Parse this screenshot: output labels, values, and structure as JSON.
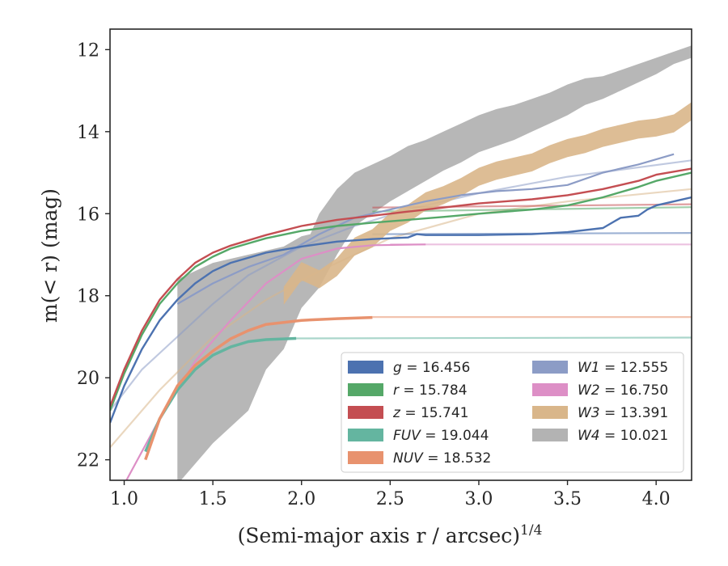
{
  "chart_data": {
    "type": "line",
    "xlabel": "(Semi-major axis r / arcsec)",
    "xlabel_sup": "1/4",
    "ylabel": "m(< r) (mag)",
    "xlim": [
      0.92,
      4.2
    ],
    "ylim": [
      22.5,
      11.5
    ],
    "x_ticks": [
      1.0,
      1.5,
      2.0,
      2.5,
      3.0,
      3.5,
      4.0
    ],
    "x_tick_labels": [
      "1.0",
      "1.5",
      "2.0",
      "2.5",
      "3.0",
      "3.5",
      "4.0"
    ],
    "y_ticks": [
      12,
      14,
      16,
      18,
      20,
      22
    ],
    "y_tick_labels": [
      "12",
      "14",
      "16",
      "18",
      "20",
      "22"
    ],
    "legend_position": "lower-right",
    "series": [
      {
        "name": "g",
        "legend": "g = 16.456",
        "color": "#4c72b0",
        "values": [
          [
            0.92,
            21.1
          ],
          [
            1.0,
            20.2
          ],
          [
            1.1,
            19.3
          ],
          [
            1.2,
            18.6
          ],
          [
            1.3,
            18.1
          ],
          [
            1.4,
            17.7
          ],
          [
            1.5,
            17.4
          ],
          [
            1.6,
            17.2
          ],
          [
            1.8,
            16.95
          ],
          [
            2.0,
            16.8
          ],
          [
            2.2,
            16.68
          ],
          [
            2.4,
            16.62
          ],
          [
            2.6,
            16.58
          ],
          [
            2.65,
            16.5
          ],
          [
            2.7,
            16.52
          ],
          [
            3.0,
            16.52
          ],
          [
            3.3,
            16.5
          ],
          [
            3.5,
            16.45
          ],
          [
            3.7,
            16.35
          ],
          [
            3.8,
            16.1
          ],
          [
            3.9,
            16.05
          ],
          [
            3.95,
            15.9
          ],
          [
            4.0,
            15.8
          ],
          [
            4.1,
            15.7
          ],
          [
            4.2,
            15.6
          ]
        ],
        "model": [
          [
            2.4,
            16.5
          ],
          [
            4.2,
            16.47
          ]
        ]
      },
      {
        "name": "r",
        "legend": "r = 15.784",
        "color": "#55a868",
        "values": [
          [
            0.92,
            20.8
          ],
          [
            1.0,
            19.9
          ],
          [
            1.1,
            18.95
          ],
          [
            1.2,
            18.2
          ],
          [
            1.3,
            17.7
          ],
          [
            1.4,
            17.3
          ],
          [
            1.5,
            17.05
          ],
          [
            1.6,
            16.85
          ],
          [
            1.8,
            16.6
          ],
          [
            2.0,
            16.42
          ],
          [
            2.2,
            16.3
          ],
          [
            2.4,
            16.22
          ],
          [
            2.6,
            16.15
          ],
          [
            2.8,
            16.08
          ],
          [
            3.0,
            16.0
          ],
          [
            3.3,
            15.9
          ],
          [
            3.5,
            15.8
          ],
          [
            3.7,
            15.6
          ],
          [
            3.9,
            15.35
          ],
          [
            4.0,
            15.2
          ],
          [
            4.2,
            15.0
          ]
        ],
        "model": [
          [
            2.4,
            15.95
          ],
          [
            4.2,
            15.84
          ]
        ]
      },
      {
        "name": "z",
        "legend": "z = 15.741",
        "color": "#c44e52",
        "values": [
          [
            0.92,
            20.7
          ],
          [
            1.0,
            19.8
          ],
          [
            1.1,
            18.85
          ],
          [
            1.2,
            18.1
          ],
          [
            1.3,
            17.6
          ],
          [
            1.4,
            17.2
          ],
          [
            1.5,
            16.95
          ],
          [
            1.6,
            16.78
          ],
          [
            1.8,
            16.52
          ],
          [
            2.0,
            16.3
          ],
          [
            2.2,
            16.15
          ],
          [
            2.4,
            16.05
          ],
          [
            2.6,
            15.95
          ],
          [
            2.8,
            15.85
          ],
          [
            3.0,
            15.75
          ],
          [
            3.3,
            15.65
          ],
          [
            3.5,
            15.55
          ],
          [
            3.7,
            15.4
          ],
          [
            3.9,
            15.2
          ],
          [
            4.0,
            15.05
          ],
          [
            4.2,
            14.9
          ]
        ],
        "model": [
          [
            2.4,
            15.85
          ],
          [
            4.2,
            15.77
          ]
        ]
      },
      {
        "name": "FUV",
        "legend": "FUV = 19.044",
        "color": "#64b5a0",
        "values": [
          [
            1.12,
            21.8
          ],
          [
            1.2,
            21.0
          ],
          [
            1.3,
            20.3
          ],
          [
            1.4,
            19.8
          ],
          [
            1.5,
            19.45
          ],
          [
            1.6,
            19.25
          ],
          [
            1.7,
            19.12
          ],
          [
            1.8,
            19.07
          ],
          [
            1.97,
            19.04
          ]
        ],
        "model": [
          [
            1.97,
            19.04
          ],
          [
            4.2,
            19.02
          ]
        ]
      },
      {
        "name": "NUV",
        "legend": "NUV = 18.532",
        "color": "#e8926e",
        "values": [
          [
            1.12,
            22.0
          ],
          [
            1.2,
            21.0
          ],
          [
            1.3,
            20.2
          ],
          [
            1.4,
            19.7
          ],
          [
            1.5,
            19.35
          ],
          [
            1.6,
            19.05
          ],
          [
            1.7,
            18.85
          ],
          [
            1.8,
            18.7
          ],
          [
            2.0,
            18.6
          ],
          [
            2.2,
            18.56
          ],
          [
            2.4,
            18.53
          ]
        ],
        "model": [
          [
            2.4,
            18.52
          ],
          [
            4.2,
            18.52
          ]
        ]
      },
      {
        "name": "W1",
        "legend": "W1 = 12.555",
        "color": "#8c9cc6",
        "values": [
          [
            1.3,
            18.2
          ],
          [
            1.5,
            17.7
          ],
          [
            1.7,
            17.3
          ],
          [
            1.9,
            17.0
          ],
          [
            2.1,
            16.5
          ],
          [
            2.3,
            16.1
          ],
          [
            2.5,
            15.9
          ],
          [
            2.7,
            15.7
          ],
          [
            2.9,
            15.55
          ],
          [
            3.1,
            15.45
          ],
          [
            3.3,
            15.4
          ],
          [
            3.5,
            15.3
          ],
          [
            3.7,
            15.0
          ],
          [
            3.9,
            14.8
          ],
          [
            4.1,
            14.55
          ]
        ],
        "model": [
          [
            0.92,
            20.8
          ],
          [
            1.1,
            19.8
          ],
          [
            1.3,
            19.0
          ],
          [
            1.5,
            18.2
          ],
          [
            1.7,
            17.5
          ],
          [
            2.0,
            16.8
          ],
          [
            2.3,
            16.3
          ],
          [
            2.6,
            15.9
          ],
          [
            3.0,
            15.5
          ],
          [
            3.5,
            15.1
          ],
          [
            4.2,
            14.7
          ]
        ]
      },
      {
        "name": "W2",
        "legend": "W2 = 16.750",
        "color": "#dd8fc6",
        "values": [
          [
            1.0,
            22.6
          ],
          [
            1.2,
            21.0
          ],
          [
            1.4,
            19.6
          ],
          [
            1.6,
            18.6
          ],
          [
            1.8,
            17.7
          ],
          [
            2.0,
            17.1
          ],
          [
            2.2,
            16.85
          ],
          [
            2.4,
            16.77
          ],
          [
            2.7,
            16.75
          ]
        ],
        "model": [
          [
            2.5,
            16.75
          ],
          [
            4.2,
            16.75
          ]
        ]
      },
      {
        "name": "W3",
        "legend": "W3 = 13.391",
        "color": "#d9b68a",
        "band_center": [
          [
            1.9,
            18.0
          ],
          [
            2.0,
            17.4
          ],
          [
            2.1,
            17.6
          ],
          [
            2.2,
            17.3
          ],
          [
            2.3,
            16.8
          ],
          [
            2.4,
            16.6
          ],
          [
            2.5,
            16.2
          ],
          [
            2.6,
            16.0
          ],
          [
            2.7,
            15.7
          ],
          [
            2.8,
            15.55
          ],
          [
            2.9,
            15.35
          ],
          [
            3.0,
            15.1
          ],
          [
            3.1,
            14.95
          ],
          [
            3.2,
            14.85
          ],
          [
            3.3,
            14.75
          ],
          [
            3.4,
            14.55
          ],
          [
            3.5,
            14.4
          ],
          [
            3.6,
            14.3
          ],
          [
            3.7,
            14.15
          ],
          [
            3.8,
            14.05
          ],
          [
            3.9,
            13.95
          ],
          [
            4.0,
            13.9
          ],
          [
            4.1,
            13.8
          ],
          [
            4.2,
            13.5
          ]
        ],
        "band_halfwidth": 0.22,
        "model": [
          [
            0.92,
            21.7
          ],
          [
            1.2,
            20.3
          ],
          [
            1.5,
            19.0
          ],
          [
            1.8,
            18.1
          ],
          [
            2.1,
            17.4
          ],
          [
            2.5,
            16.6
          ],
          [
            3.0,
            16.0
          ],
          [
            3.5,
            15.7
          ],
          [
            4.2,
            15.4
          ]
        ]
      },
      {
        "name": "W4",
        "legend": "W4 = 10.021",
        "color": "#b3b3b3",
        "band_upper": [
          [
            1.3,
            17.6
          ],
          [
            1.5,
            17.2
          ],
          [
            1.7,
            17.0
          ],
          [
            1.9,
            16.8
          ],
          [
            2.0,
            16.55
          ],
          [
            2.05,
            16.5
          ],
          [
            2.1,
            16.0
          ],
          [
            2.2,
            15.4
          ],
          [
            2.3,
            15.0
          ],
          [
            2.4,
            14.8
          ],
          [
            2.5,
            14.6
          ],
          [
            2.6,
            14.35
          ],
          [
            2.7,
            14.2
          ],
          [
            2.8,
            14.0
          ],
          [
            2.9,
            13.8
          ],
          [
            3.0,
            13.6
          ],
          [
            3.1,
            13.45
          ],
          [
            3.2,
            13.35
          ],
          [
            3.3,
            13.2
          ],
          [
            3.4,
            13.05
          ],
          [
            3.5,
            12.85
          ],
          [
            3.6,
            12.7
          ],
          [
            3.7,
            12.65
          ],
          [
            3.8,
            12.5
          ],
          [
            3.9,
            12.35
          ],
          [
            4.0,
            12.2
          ],
          [
            4.1,
            12.05
          ],
          [
            4.2,
            11.9
          ]
        ],
        "band_lower": [
          [
            1.3,
            22.6
          ],
          [
            1.5,
            21.6
          ],
          [
            1.7,
            20.8
          ],
          [
            1.8,
            19.8
          ],
          [
            1.9,
            19.3
          ],
          [
            2.0,
            18.3
          ],
          [
            2.1,
            17.8
          ],
          [
            2.2,
            17.0
          ],
          [
            2.3,
            16.3
          ],
          [
            2.4,
            16.0
          ],
          [
            2.5,
            15.7
          ],
          [
            2.6,
            15.45
          ],
          [
            2.7,
            15.2
          ],
          [
            2.8,
            14.95
          ],
          [
            2.9,
            14.75
          ],
          [
            3.0,
            14.5
          ],
          [
            3.1,
            14.35
          ],
          [
            3.2,
            14.2
          ],
          [
            3.3,
            14.0
          ],
          [
            3.4,
            13.8
          ],
          [
            3.5,
            13.6
          ],
          [
            3.6,
            13.35
          ],
          [
            3.7,
            13.2
          ],
          [
            3.8,
            13.0
          ],
          [
            3.9,
            12.8
          ],
          [
            4.0,
            12.6
          ],
          [
            4.1,
            12.35
          ],
          [
            4.2,
            12.2
          ]
        ]
      }
    ]
  }
}
